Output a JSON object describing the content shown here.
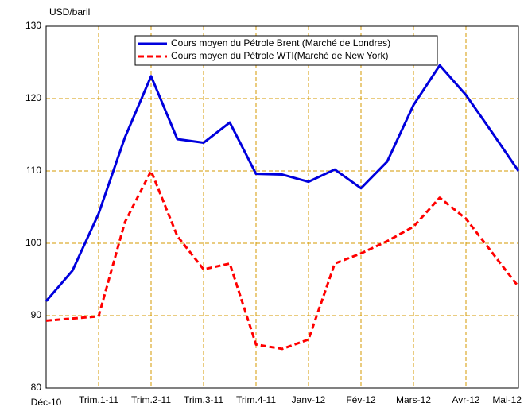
{
  "chart_data": {
    "type": "line",
    "ylabel": "USD/baril",
    "categories": [
      "Déc-10",
      null,
      "Trim.1-11",
      null,
      "Trim.2-11",
      null,
      "Trim.3-11",
      null,
      "Trim.4-11",
      null,
      "Janv-12",
      null,
      "Fév-12",
      null,
      "Mars-12",
      null,
      "Avr-12",
      null,
      "Mai-12"
    ],
    "series": [
      {
        "name": "Cours moyen du Pétrole Brent (Marché de Londres)",
        "color": "#0000dd",
        "dash": false,
        "values": [
          92,
          96.2,
          104.1,
          114.6,
          123.1,
          114.4,
          113.9,
          116.7,
          109.6,
          109.5,
          108.5,
          110.2,
          107.6,
          111.3,
          119.1,
          124.6,
          120.5,
          115.3,
          110
        ]
      },
      {
        "name": "Cours moyen du Pétrole WTI(Marché de New York)",
        "color": "#ff0000",
        "dash": true,
        "values": [
          89.3,
          89.6,
          89.9,
          102.9,
          110,
          101,
          96.4,
          97.2,
          86,
          85.4,
          86.7,
          97.2,
          98.6,
          100.3,
          102.3,
          106.3,
          103.4,
          98.7,
          94
        ]
      }
    ],
    "ylim": [
      80,
      130
    ],
    "yticks": [
      80,
      90,
      100,
      110,
      120,
      130
    ],
    "grid": true,
    "legend": "top"
  }
}
